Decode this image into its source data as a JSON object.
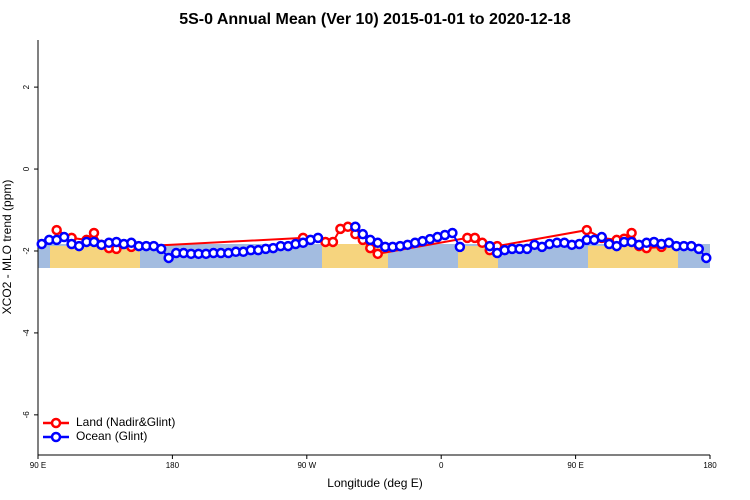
{
  "chart_data": {
    "type": "line",
    "title": "5S-0 Annual Mean (Ver 10)   2015-01-01 to 2020-12-18",
    "x_label": "Longitude (deg E)",
    "y_label": "XCO2 - MLO trend (ppm)",
    "xlim": [
      90,
      540
    ],
    "xticks": [
      {
        "value": 90,
        "label": "90 E"
      },
      180,
      {
        "value": 270,
        "label": "90 W"
      },
      {
        "value": 360,
        "label": "0"
      },
      {
        "value": 450,
        "label": "90 E"
      },
      {
        "value": 540,
        "label": "180"
      }
    ],
    "ylim": [
      -6.98,
      3.15
    ],
    "yticks": [
      -6,
      -4,
      -2,
      0,
      2
    ],
    "legend": "bottom-left",
    "series": [
      {
        "name": "Land (Nadir&Glint)",
        "color": "#ff0000",
        "x": [
          102.5,
          112.5,
          122.5,
          127.5,
          132.5,
          137.5,
          142.5,
          152.5,
          267.5,
          282.5,
          287.5,
          292.5,
          297.5,
          302.5,
          307.5,
          312.5,
          317.5,
          377.5,
          382.5,
          387.5,
          392.5,
          397.5,
          457.5,
          467.5,
          477.5,
          482.5,
          487.5,
          492.5,
          497.5,
          507.5
        ],
        "values": [
          -1.49,
          -1.68,
          -1.73,
          -1.56,
          -1.85,
          -1.93,
          -1.95,
          -1.9,
          -1.68,
          -1.78,
          -1.78,
          -1.46,
          -1.41,
          -1.59,
          -1.73,
          -1.93,
          -2.07,
          -1.68,
          -1.68,
          -1.8,
          -1.98,
          -1.88,
          -1.49,
          -1.68,
          -1.73,
          -1.7,
          -1.56,
          -1.88,
          -1.93,
          -1.9
        ]
      },
      {
        "name": "Ocean (Glint)",
        "color": "#0000ff",
        "x": [
          92.5,
          97.5,
          102.5,
          107.5,
          112.5,
          117.5,
          122.5,
          127.5,
          132.5,
          137.5,
          142.5,
          147.5,
          152.5,
          157.5,
          162.5,
          167.5,
          172.5,
          177.5,
          182.5,
          187.5,
          192.5,
          197.5,
          202.5,
          207.5,
          212.5,
          217.5,
          222.5,
          227.5,
          232.5,
          237.5,
          242.5,
          247.5,
          252.5,
          257.5,
          262.5,
          267.5,
          272.5,
          277.5,
          282.5,
          287.5,
          292.5,
          297.5,
          302.5,
          307.5,
          312.5,
          317.5,
          322.5,
          327.5,
          332.5,
          337.5,
          342.5,
          347.5,
          352.5,
          357.5,
          362.5,
          367.5,
          372.5,
          377.5,
          382.5,
          387.5,
          392.5,
          397.5,
          402.5,
          407.5,
          412.5,
          417.5,
          422.5,
          427.5,
          432.5,
          437.5,
          442.5,
          447.5,
          452.5,
          457.5,
          462.5,
          467.5,
          472.5,
          477.5,
          482.5,
          487.5,
          492.5,
          497.5,
          502.5,
          507.5,
          512.5,
          517.5,
          522.5,
          527.5,
          532.5,
          537.5
        ],
        "values": [
          -1.83,
          -1.73,
          -1.73,
          -1.66,
          -1.83,
          -1.88,
          -1.78,
          -1.78,
          -1.85,
          -1.8,
          -1.78,
          -1.83,
          -1.8,
          -1.88,
          -1.88,
          -1.88,
          -1.95,
          -2.17,
          -2.05,
          -2.05,
          -2.07,
          -2.07,
          -2.07,
          -2.05,
          -2.05,
          -2.05,
          -2.02,
          -2.02,
          -1.98,
          -1.98,
          -1.95,
          -1.93,
          -1.88,
          -1.88,
          -1.83,
          -1.8,
          -1.73,
          -1.68,
          null,
          null,
          null,
          null,
          -1.41,
          -1.59,
          -1.73,
          -1.8,
          -1.9,
          -1.9,
          -1.88,
          -1.85,
          -1.8,
          -1.76,
          -1.71,
          -1.66,
          -1.61,
          -1.56,
          -1.9,
          null,
          null,
          null,
          -1.88,
          -2.05,
          -1.98,
          -1.95,
          -1.95,
          -1.95,
          -1.85,
          -1.9,
          -1.83,
          -1.8,
          -1.8,
          -1.85,
          -1.83,
          -1.73,
          -1.73,
          -1.66,
          -1.83,
          -1.88,
          -1.78,
          -1.78,
          -1.85,
          -1.8,
          -1.78,
          -1.83,
          -1.8,
          -1.88,
          -1.88,
          -1.88,
          -1.95,
          -2.17
        ]
      }
    ]
  }
}
